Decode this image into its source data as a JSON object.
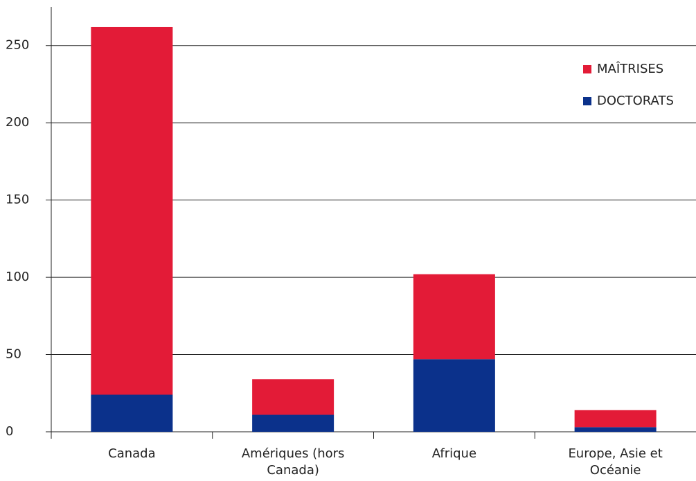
{
  "chart_data": {
    "type": "stacked_bar",
    "categories": [
      "Canada",
      "Amériques (hors Canada)",
      "Afrique",
      "Europe, Asie et Océanie"
    ],
    "series": [
      {
        "name": "DOCTORATS",
        "color": "#0b318b",
        "values": [
          24,
          11,
          47,
          3
        ]
      },
      {
        "name": "MAÎTRISES",
        "color": "#e31b37",
        "values": [
          238,
          23,
          55,
          11
        ]
      }
    ],
    "ylim": [
      0,
      275
    ],
    "yticks": [
      0,
      50,
      100,
      150,
      200,
      250
    ],
    "grid": true,
    "legend": "upper right"
  }
}
